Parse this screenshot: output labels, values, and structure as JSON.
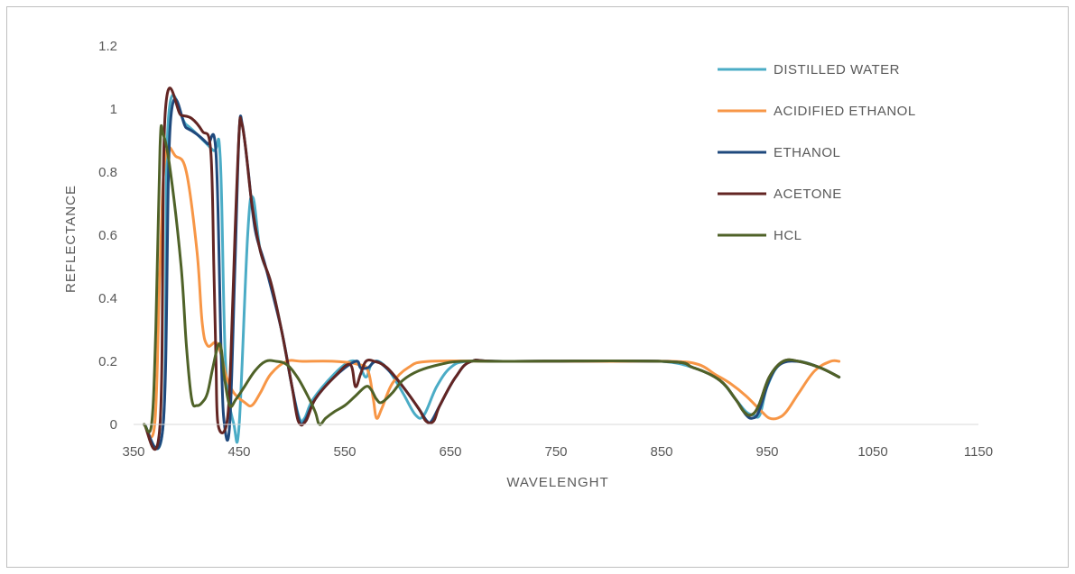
{
  "chart_data": {
    "type": "line",
    "title": "",
    "xlabel": "WAVELENGHT",
    "ylabel": "REFLECTANCE",
    "xlim": [
      350,
      1150
    ],
    "ylim": [
      0,
      1.2
    ],
    "x_ticks": [
      350,
      450,
      550,
      650,
      750,
      850,
      950,
      1050,
      1150
    ],
    "y_ticks": [
      0,
      0.2,
      0.4,
      0.6,
      0.8,
      1,
      1.2
    ],
    "x_tick_labels": [
      "350",
      "450",
      "550",
      "650",
      "750",
      "850",
      "950",
      "1050",
      "1150"
    ],
    "y_tick_labels": [
      "0",
      "0.2",
      "0.4",
      "0.6",
      "0.8",
      "1",
      "1.2"
    ],
    "grid": false,
    "legend_position": "top-right",
    "series": [
      {
        "name": "DISTILLED WATER",
        "color": "#4bacc6",
        "points": [
          [
            360,
            0
          ],
          [
            378,
            0
          ],
          [
            383,
            0.97
          ],
          [
            400,
            0.95
          ],
          [
            425,
            0.87
          ],
          [
            432,
            0.85
          ],
          [
            437,
            0.2
          ],
          [
            445,
            0
          ],
          [
            450,
            0
          ],
          [
            458,
            0.6
          ],
          [
            463,
            0.72
          ],
          [
            470,
            0.55
          ],
          [
            480,
            0.45
          ],
          [
            490,
            0.3
          ],
          [
            500,
            0.12
          ],
          [
            507,
            0.02
          ],
          [
            512,
            0.02
          ],
          [
            520,
            0.08
          ],
          [
            540,
            0.16
          ],
          [
            555,
            0.2
          ],
          [
            563,
            0.19
          ],
          [
            570,
            0.15
          ],
          [
            575,
            0.19
          ],
          [
            582,
            0.2
          ],
          [
            592,
            0.17
          ],
          [
            605,
            0.1
          ],
          [
            617,
            0.03
          ],
          [
            625,
            0.03
          ],
          [
            637,
            0.12
          ],
          [
            650,
            0.18
          ],
          [
            665,
            0.2
          ],
          [
            700,
            0.2
          ],
          [
            800,
            0.2
          ],
          [
            850,
            0.2
          ],
          [
            880,
            0.18
          ],
          [
            905,
            0.14
          ],
          [
            920,
            0.08
          ],
          [
            930,
            0.04
          ],
          [
            937,
            0.03
          ],
          [
            943,
            0.03
          ],
          [
            950,
            0.12
          ],
          [
            962,
            0.19
          ],
          [
            980,
            0.2
          ],
          [
            1000,
            0.18
          ],
          [
            1018,
            0.15
          ]
        ]
      },
      {
        "name": "ACIDIFIED ETHANOL",
        "color": "#f79646",
        "points": [
          [
            360,
            0
          ],
          [
            370,
            0
          ],
          [
            375,
            0.5
          ],
          [
            380,
            0.85
          ],
          [
            390,
            0.85
          ],
          [
            400,
            0.8
          ],
          [
            410,
            0.55
          ],
          [
            415,
            0.32
          ],
          [
            420,
            0.25
          ],
          [
            428,
            0.26
          ],
          [
            433,
            0.22
          ],
          [
            438,
            0.15
          ],
          [
            445,
            0.1
          ],
          [
            455,
            0.07
          ],
          [
            462,
            0.06
          ],
          [
            470,
            0.1
          ],
          [
            480,
            0.16
          ],
          [
            495,
            0.2
          ],
          [
            510,
            0.2
          ],
          [
            540,
            0.2
          ],
          [
            563,
            0.19
          ],
          [
            572,
            0.17
          ],
          [
            577,
            0.08
          ],
          [
            580,
            0.02
          ],
          [
            585,
            0.05
          ],
          [
            595,
            0.13
          ],
          [
            610,
            0.18
          ],
          [
            630,
            0.2
          ],
          [
            700,
            0.2
          ],
          [
            800,
            0.2
          ],
          [
            860,
            0.2
          ],
          [
            885,
            0.19
          ],
          [
            900,
            0.16
          ],
          [
            915,
            0.13
          ],
          [
            930,
            0.09
          ],
          [
            945,
            0.04
          ],
          [
            952,
            0.02
          ],
          [
            960,
            0.02
          ],
          [
            968,
            0.04
          ],
          [
            980,
            0.1
          ],
          [
            995,
            0.17
          ],
          [
            1010,
            0.2
          ],
          [
            1018,
            0.2
          ]
        ]
      },
      {
        "name": "ETHANOL",
        "color": "#1f497d",
        "points": [
          [
            360,
            0
          ],
          [
            378,
            0
          ],
          [
            385,
            0.96
          ],
          [
            400,
            0.94
          ],
          [
            410,
            0.92
          ],
          [
            420,
            0.89
          ],
          [
            428,
            0.86
          ],
          [
            433,
            0.22
          ],
          [
            436,
            0
          ],
          [
            441,
            0
          ],
          [
            446,
            0.5
          ],
          [
            450,
            0.93
          ],
          [
            453,
            0.95
          ],
          [
            458,
            0.82
          ],
          [
            465,
            0.62
          ],
          [
            475,
            0.5
          ],
          [
            490,
            0.3
          ],
          [
            500,
            0.12
          ],
          [
            507,
            0.01
          ],
          [
            512,
            0.01
          ],
          [
            522,
            0.08
          ],
          [
            540,
            0.15
          ],
          [
            560,
            0.2
          ],
          [
            565,
            0.18
          ],
          [
            572,
            0.18
          ],
          [
            580,
            0.2
          ],
          [
            592,
            0.17
          ],
          [
            605,
            0.12
          ],
          [
            620,
            0.05
          ],
          [
            628,
            0.01
          ],
          [
            632,
            0.01
          ],
          [
            640,
            0.06
          ],
          [
            655,
            0.15
          ],
          [
            670,
            0.2
          ],
          [
            700,
            0.2
          ],
          [
            850,
            0.2
          ],
          [
            880,
            0.18
          ],
          [
            905,
            0.14
          ],
          [
            920,
            0.08
          ],
          [
            930,
            0.03
          ],
          [
            936,
            0.02
          ],
          [
            942,
            0.04
          ],
          [
            952,
            0.14
          ],
          [
            962,
            0.19
          ],
          [
            978,
            0.2
          ],
          [
            1000,
            0.18
          ],
          [
            1018,
            0.15
          ]
        ]
      },
      {
        "name": "ACETONE",
        "color": "#632523",
        "points": [
          [
            360,
            0
          ],
          [
            375,
            0
          ],
          [
            380,
            0.99
          ],
          [
            395,
            0.98
          ],
          [
            405,
            0.97
          ],
          [
            415,
            0.93
          ],
          [
            423,
            0.87
          ],
          [
            426,
            0.5
          ],
          [
            428,
            0.2
          ],
          [
            430,
            0
          ],
          [
            438,
            0
          ],
          [
            442,
            0.2
          ],
          [
            446,
            0.6
          ],
          [
            450,
            0.93
          ],
          [
            452,
            0.96
          ],
          [
            456,
            0.88
          ],
          [
            462,
            0.7
          ],
          [
            470,
            0.55
          ],
          [
            480,
            0.45
          ],
          [
            490,
            0.3
          ],
          [
            500,
            0.12
          ],
          [
            506,
            0.01
          ],
          [
            513,
            0.01
          ],
          [
            522,
            0.08
          ],
          [
            540,
            0.15
          ],
          [
            555,
            0.19
          ],
          [
            560,
            0.12
          ],
          [
            565,
            0.16
          ],
          [
            570,
            0.2
          ],
          [
            578,
            0.2
          ],
          [
            590,
            0.18
          ],
          [
            605,
            0.12
          ],
          [
            620,
            0.05
          ],
          [
            627,
            0.01
          ],
          [
            634,
            0.01
          ],
          [
            640,
            0.06
          ],
          [
            655,
            0.15
          ],
          [
            670,
            0.2
          ],
          [
            700,
            0.2
          ],
          [
            850,
            0.2
          ],
          [
            880,
            0.18
          ],
          [
            905,
            0.14
          ],
          [
            920,
            0.08
          ],
          [
            928,
            0.04
          ],
          [
            935,
            0.03
          ],
          [
            942,
            0.06
          ],
          [
            952,
            0.15
          ],
          [
            965,
            0.2
          ],
          [
            980,
            0.2
          ],
          [
            1000,
            0.18
          ],
          [
            1018,
            0.15
          ]
        ]
      },
      {
        "name": "HCL",
        "color": "#4f6228",
        "points": [
          [
            360,
            0
          ],
          [
            367,
            0
          ],
          [
            371,
            0.3
          ],
          [
            375,
            0.88
          ],
          [
            378,
            0.92
          ],
          [
            385,
            0.8
          ],
          [
            395,
            0.5
          ],
          [
            400,
            0.25
          ],
          [
            405,
            0.08
          ],
          [
            410,
            0.06
          ],
          [
            415,
            0.07
          ],
          [
            420,
            0.1
          ],
          [
            425,
            0.18
          ],
          [
            430,
            0.25
          ],
          [
            433,
            0.24
          ],
          [
            436,
            0.15
          ],
          [
            441,
            0.06
          ],
          [
            447,
            0.08
          ],
          [
            455,
            0.12
          ],
          [
            465,
            0.17
          ],
          [
            475,
            0.2
          ],
          [
            485,
            0.2
          ],
          [
            495,
            0.19
          ],
          [
            505,
            0.15
          ],
          [
            515,
            0.09
          ],
          [
            522,
            0.04
          ],
          [
            526,
            0.0
          ],
          [
            532,
            0.02
          ],
          [
            540,
            0.04
          ],
          [
            550,
            0.06
          ],
          [
            560,
            0.09
          ],
          [
            570,
            0.12
          ],
          [
            575,
            0.11
          ],
          [
            580,
            0.08
          ],
          [
            585,
            0.07
          ],
          [
            595,
            0.1
          ],
          [
            605,
            0.14
          ],
          [
            620,
            0.17
          ],
          [
            640,
            0.19
          ],
          [
            660,
            0.2
          ],
          [
            700,
            0.2
          ],
          [
            850,
            0.2
          ],
          [
            880,
            0.18
          ],
          [
            905,
            0.14
          ],
          [
            920,
            0.08
          ],
          [
            928,
            0.04
          ],
          [
            935,
            0.03
          ],
          [
            942,
            0.06
          ],
          [
            952,
            0.15
          ],
          [
            965,
            0.2
          ],
          [
            980,
            0.2
          ],
          [
            1000,
            0.18
          ],
          [
            1018,
            0.15
          ]
        ]
      }
    ]
  }
}
